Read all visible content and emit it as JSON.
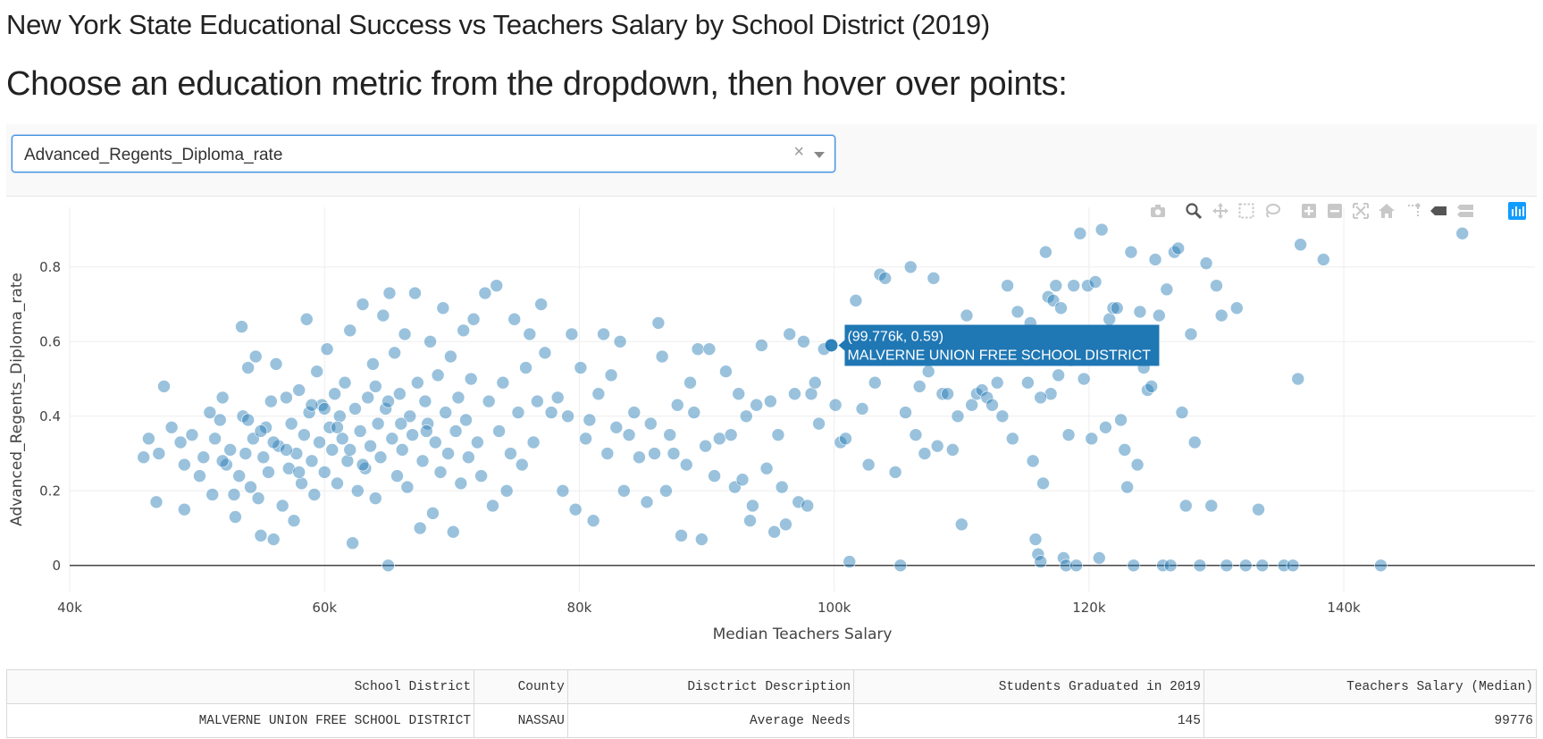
{
  "page": {
    "title": "New York State Educational Success vs Teachers Salary by School District (2019)",
    "subtitle": "Choose an education metric from the dropdown, then hover over points:"
  },
  "dropdown": {
    "value": "Advanced_Regents_Diploma_rate",
    "clear_glyph": "×"
  },
  "modebar": {
    "icons": [
      "camera-icon",
      "zoom-icon",
      "pan-icon",
      "box-select-icon",
      "lasso-select-icon",
      "zoom-in-icon",
      "zoom-out-icon",
      "autoscale-icon",
      "reset-axes-icon",
      "toggle-spikelines-icon",
      "hover-closest-icon",
      "hover-compare-icon",
      "plotly-logo-icon"
    ]
  },
  "colors": {
    "marker": "#1f77b4",
    "tooltip_bg": "#1f77b4",
    "grid": "#eeeeee",
    "zeroline": "#444444"
  },
  "chart_data": {
    "type": "scatter",
    "xlabel": "Median Teachers Salary",
    "ylabel": "Advanced_Regents_Diploma_rate",
    "xlim": [
      40000,
      155000
    ],
    "ylim": [
      -0.07,
      0.96
    ],
    "xticks": [
      40000,
      60000,
      80000,
      100000,
      120000,
      140000
    ],
    "xtick_labels": [
      "40k",
      "60k",
      "80k",
      "100k",
      "120k",
      "140k"
    ],
    "yticks": [
      0,
      0.2,
      0.4,
      0.6,
      0.8
    ],
    "ytick_labels": [
      "0",
      "0.2",
      "0.4",
      "0.6",
      "0.8"
    ],
    "grid": true,
    "hover": {
      "x": 99776,
      "y": 0.59,
      "label": "(99.776k, 0.59)",
      "name": "MALVERNE UNION FREE SCHOOL DISTRICT"
    },
    "points": [
      [
        45800,
        0.29
      ],
      [
        46200,
        0.34
      ],
      [
        46800,
        0.17
      ],
      [
        47000,
        0.3
      ],
      [
        47400,
        0.48
      ],
      [
        48000,
        0.37
      ],
      [
        48700,
        0.33
      ],
      [
        49000,
        0.15
      ],
      [
        49000,
        0.27
      ],
      [
        49600,
        0.35
      ],
      [
        50200,
        0.24
      ],
      [
        50500,
        0.29
      ],
      [
        51000,
        0.41
      ],
      [
        51200,
        0.19
      ],
      [
        51400,
        0.34
      ],
      [
        51800,
        0.39
      ],
      [
        52000,
        0.45
      ],
      [
        52300,
        0.27
      ],
      [
        52600,
        0.31
      ],
      [
        52900,
        0.19
      ],
      [
        53000,
        0.13
      ],
      [
        53300,
        0.24
      ],
      [
        53500,
        0.64
      ],
      [
        53600,
        0.4
      ],
      [
        53800,
        0.3
      ],
      [
        54000,
        0.53
      ],
      [
        54200,
        0.21
      ],
      [
        54400,
        0.34
      ],
      [
        54600,
        0.56
      ],
      [
        54800,
        0.18
      ],
      [
        55000,
        0.08
      ],
      [
        55200,
        0.29
      ],
      [
        55400,
        0.37
      ],
      [
        55600,
        0.25
      ],
      [
        55800,
        0.44
      ],
      [
        56000,
        0.07
      ],
      [
        56200,
        0.54
      ],
      [
        56400,
        0.32
      ],
      [
        56700,
        0.16
      ],
      [
        57000,
        0.45
      ],
      [
        57200,
        0.26
      ],
      [
        57400,
        0.38
      ],
      [
        57600,
        0.12
      ],
      [
        57800,
        0.3
      ],
      [
        58000,
        0.47
      ],
      [
        58200,
        0.22
      ],
      [
        58400,
        0.35
      ],
      [
        58600,
        0.66
      ],
      [
        58800,
        0.41
      ],
      [
        59000,
        0.28
      ],
      [
        59200,
        0.19
      ],
      [
        59400,
        0.52
      ],
      [
        59600,
        0.33
      ],
      [
        59800,
        0.43
      ],
      [
        60000,
        0.25
      ],
      [
        60200,
        0.58
      ],
      [
        60400,
        0.37
      ],
      [
        60600,
        0.31
      ],
      [
        60800,
        0.46
      ],
      [
        61000,
        0.22
      ],
      [
        61200,
        0.4
      ],
      [
        61400,
        0.34
      ],
      [
        61600,
        0.49
      ],
      [
        61800,
        0.28
      ],
      [
        62000,
        0.63
      ],
      [
        62200,
        0.06
      ],
      [
        62400,
        0.42
      ],
      [
        62600,
        0.2
      ],
      [
        62800,
        0.36
      ],
      [
        63000,
        0.7
      ],
      [
        63200,
        0.26
      ],
      [
        63400,
        0.45
      ],
      [
        63600,
        0.32
      ],
      [
        63800,
        0.54
      ],
      [
        64000,
        0.18
      ],
      [
        64200,
        0.38
      ],
      [
        64400,
        0.29
      ],
      [
        64600,
        0.67
      ],
      [
        64800,
        0.42
      ],
      [
        65000,
        0.0
      ],
      [
        65100,
        0.73
      ],
      [
        65300,
        0.34
      ],
      [
        65500,
        0.57
      ],
      [
        65700,
        0.24
      ],
      [
        65900,
        0.46
      ],
      [
        66100,
        0.31
      ],
      [
        66300,
        0.62
      ],
      [
        66500,
        0.21
      ],
      [
        66700,
        0.4
      ],
      [
        66900,
        0.35
      ],
      [
        67100,
        0.73
      ],
      [
        67300,
        0.49
      ],
      [
        67500,
        0.1
      ],
      [
        67700,
        0.28
      ],
      [
        67900,
        0.44
      ],
      [
        68100,
        0.38
      ],
      [
        68300,
        0.6
      ],
      [
        68500,
        0.14
      ],
      [
        68700,
        0.33
      ],
      [
        68900,
        0.51
      ],
      [
        69100,
        0.25
      ],
      [
        69300,
        0.69
      ],
      [
        69500,
        0.41
      ],
      [
        69700,
        0.3
      ],
      [
        69900,
        0.56
      ],
      [
        70100,
        0.09
      ],
      [
        70300,
        0.36
      ],
      [
        70500,
        0.45
      ],
      [
        70700,
        0.22
      ],
      [
        70900,
        0.63
      ],
      [
        71100,
        0.39
      ],
      [
        71300,
        0.29
      ],
      [
        71500,
        0.5
      ],
      [
        71700,
        0.66
      ],
      [
        72000,
        0.33
      ],
      [
        72300,
        0.24
      ],
      [
        72600,
        0.73
      ],
      [
        72900,
        0.44
      ],
      [
        73200,
        0.16
      ],
      [
        73500,
        0.75
      ],
      [
        73700,
        0.36
      ],
      [
        74000,
        0.49
      ],
      [
        74300,
        0.2
      ],
      [
        74600,
        0.3
      ],
      [
        74900,
        0.66
      ],
      [
        75200,
        0.41
      ],
      [
        75500,
        0.27
      ],
      [
        75800,
        0.53
      ],
      [
        76100,
        0.62
      ],
      [
        76400,
        0.33
      ],
      [
        76700,
        0.44
      ],
      [
        77000,
        0.7
      ],
      [
        77300,
        0.57
      ],
      [
        77800,
        0.41
      ],
      [
        78300,
        0.45
      ],
      [
        78700,
        0.2
      ],
      [
        79100,
        0.4
      ],
      [
        79400,
        0.62
      ],
      [
        79700,
        0.15
      ],
      [
        80100,
        0.53
      ],
      [
        80500,
        0.34
      ],
      [
        80800,
        0.39
      ],
      [
        81100,
        0.12
      ],
      [
        81500,
        0.46
      ],
      [
        81900,
        0.62
      ],
      [
        82200,
        0.3
      ],
      [
        82500,
        0.51
      ],
      [
        82900,
        0.37
      ],
      [
        83200,
        0.6
      ],
      [
        83500,
        0.2
      ],
      [
        83900,
        0.35
      ],
      [
        84300,
        0.41
      ],
      [
        84700,
        0.29
      ],
      [
        85300,
        0.17
      ],
      [
        85600,
        0.38
      ],
      [
        85900,
        0.3
      ],
      [
        86200,
        0.65
      ],
      [
        86500,
        0.56
      ],
      [
        86800,
        0.2
      ],
      [
        87100,
        0.35
      ],
      [
        87400,
        0.3
      ],
      [
        87700,
        0.43
      ],
      [
        88000,
        0.08
      ],
      [
        88400,
        0.27
      ],
      [
        88700,
        0.49
      ],
      [
        89000,
        0.41
      ],
      [
        89300,
        0.58
      ],
      [
        89600,
        0.07
      ],
      [
        89900,
        0.32
      ],
      [
        90200,
        0.58
      ],
      [
        90600,
        0.24
      ],
      [
        91000,
        0.34
      ],
      [
        91500,
        0.52
      ],
      [
        91900,
        0.35
      ],
      [
        92200,
        0.21
      ],
      [
        92500,
        0.46
      ],
      [
        92800,
        0.23
      ],
      [
        93100,
        0.4
      ],
      [
        93400,
        0.12
      ],
      [
        93600,
        0.16
      ],
      [
        93900,
        0.43
      ],
      [
        94300,
        0.59
      ],
      [
        94700,
        0.26
      ],
      [
        95000,
        0.44
      ],
      [
        95300,
        0.09
      ],
      [
        95600,
        0.35
      ],
      [
        95900,
        0.21
      ],
      [
        96200,
        0.11
      ],
      [
        96500,
        0.62
      ],
      [
        96900,
        0.46
      ],
      [
        97200,
        0.17
      ],
      [
        97600,
        0.6
      ],
      [
        97900,
        0.16
      ],
      [
        98200,
        0.46
      ],
      [
        98500,
        0.49
      ],
      [
        98800,
        0.38
      ],
      [
        99200,
        0.58
      ],
      [
        99776,
        0.59
      ],
      [
        100100,
        0.43
      ],
      [
        100500,
        0.33
      ],
      [
        100900,
        0.34
      ],
      [
        101200,
        0.01
      ],
      [
        101700,
        0.71
      ],
      [
        102200,
        0.42
      ],
      [
        102700,
        0.27
      ],
      [
        103200,
        0.49
      ],
      [
        103600,
        0.78
      ],
      [
        104000,
        0.77
      ],
      [
        104800,
        0.25
      ],
      [
        105200,
        0.0
      ],
      [
        105600,
        0.41
      ],
      [
        106000,
        0.8
      ],
      [
        106400,
        0.35
      ],
      [
        106700,
        0.48
      ],
      [
        107100,
        0.3
      ],
      [
        107400,
        0.52
      ],
      [
        107800,
        0.77
      ],
      [
        108100,
        0.32
      ],
      [
        108500,
        0.46
      ],
      [
        108900,
        0.46
      ],
      [
        109300,
        0.31
      ],
      [
        109700,
        0.4
      ],
      [
        110000,
        0.11
      ],
      [
        110400,
        0.67
      ],
      [
        110800,
        0.43
      ],
      [
        111200,
        0.46
      ],
      [
        111600,
        0.47
      ],
      [
        112000,
        0.45
      ],
      [
        112400,
        0.43
      ],
      [
        112800,
        0.49
      ],
      [
        113200,
        0.4
      ],
      [
        113600,
        0.75
      ],
      [
        114000,
        0.34
      ],
      [
        114400,
        0.68
      ],
      [
        114800,
        0.62
      ],
      [
        115200,
        0.49
      ],
      [
        115400,
        0.65
      ],
      [
        115600,
        0.28
      ],
      [
        115800,
        0.07
      ],
      [
        116000,
        0.03
      ],
      [
        116200,
        0.01
      ],
      [
        116400,
        0.22
      ],
      [
        116600,
        0.84
      ],
      [
        116800,
        0.72
      ],
      [
        117000,
        0.46
      ],
      [
        117200,
        0.71
      ],
      [
        117400,
        0.75
      ],
      [
        117600,
        0.51
      ],
      [
        117800,
        0.69
      ],
      [
        118000,
        0.02
      ],
      [
        118200,
        0.0
      ],
      [
        118400,
        0.35
      ],
      [
        118600,
        0.55
      ],
      [
        118800,
        0.75
      ],
      [
        119000,
        0.0
      ],
      [
        119300,
        0.89
      ],
      [
        119600,
        0.5
      ],
      [
        119900,
        0.75
      ],
      [
        120200,
        0.34
      ],
      [
        120500,
        0.76
      ],
      [
        120800,
        0.02
      ],
      [
        121000,
        0.9
      ],
      [
        121300,
        0.37
      ],
      [
        121600,
        0.66
      ],
      [
        121900,
        0.69
      ],
      [
        122200,
        0.69
      ],
      [
        122500,
        0.39
      ],
      [
        122800,
        0.31
      ],
      [
        123000,
        0.21
      ],
      [
        123300,
        0.84
      ],
      [
        123500,
        0.0
      ],
      [
        123800,
        0.27
      ],
      [
        124000,
        0.68
      ],
      [
        124300,
        0.53
      ],
      [
        124600,
        0.47
      ],
      [
        124900,
        0.48
      ],
      [
        125200,
        0.82
      ],
      [
        125500,
        0.67
      ],
      [
        125800,
        0.0
      ],
      [
        126100,
        0.74
      ],
      [
        126400,
        0.0
      ],
      [
        126700,
        0.84
      ],
      [
        127000,
        0.85
      ],
      [
        127300,
        0.41
      ],
      [
        127600,
        0.16
      ],
      [
        128000,
        0.62
      ],
      [
        128300,
        0.33
      ],
      [
        128700,
        0.0
      ],
      [
        129200,
        0.81
      ],
      [
        129600,
        0.16
      ],
      [
        130000,
        0.75
      ],
      [
        130400,
        0.67
      ],
      [
        130800,
        0.0
      ],
      [
        131600,
        0.69
      ],
      [
        132300,
        0.0
      ],
      [
        133300,
        0.15
      ],
      [
        133600,
        0.0
      ],
      [
        135300,
        0.0
      ],
      [
        136000,
        0.0
      ],
      [
        136400,
        0.5
      ],
      [
        136600,
        0.86
      ],
      [
        138400,
        0.82
      ],
      [
        142900,
        0.0
      ],
      [
        149300,
        0.89
      ],
      [
        116200,
        0.45
      ],
      [
        55000,
        0.36
      ],
      [
        60000,
        0.42
      ],
      [
        64000,
        0.48
      ],
      [
        57000,
        0.31
      ],
      [
        66000,
        0.38
      ],
      [
        52000,
        0.28
      ],
      [
        59000,
        0.43
      ],
      [
        63000,
        0.27
      ],
      [
        68000,
        0.36
      ],
      [
        56000,
        0.33
      ],
      [
        62000,
        0.31
      ],
      [
        58000,
        0.25
      ],
      [
        61000,
        0.37
      ],
      [
        65000,
        0.44
      ],
      [
        54000,
        0.39
      ]
    ]
  },
  "table": {
    "columns": [
      "School District",
      "County",
      "Disctrict Description",
      "Students Graduated in 2019",
      "Teachers Salary (Median)"
    ],
    "rows": [
      [
        "MALVERNE UNION FREE SCHOOL DISTRICT",
        "NASSAU",
        "Average Needs",
        "145",
        "99776"
      ]
    ]
  }
}
